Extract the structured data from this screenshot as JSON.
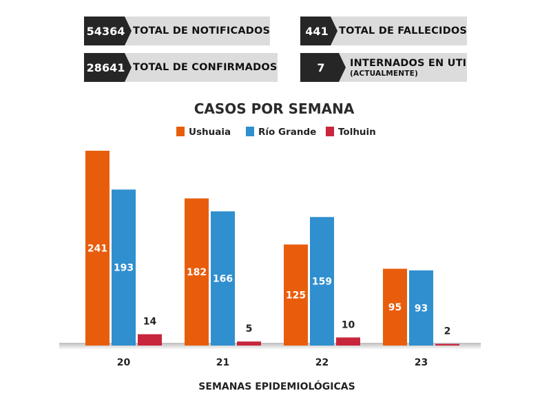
{
  "stats": {
    "notificados": {
      "value": "54364",
      "label": "TOTAL DE NOTIFICADOS"
    },
    "confirmados": {
      "value": "28641",
      "label": "TOTAL DE CONFIRMADOS"
    },
    "fallecidos": {
      "value": "441",
      "label": "TOTAL DE FALLECIDOS"
    },
    "uti": {
      "value": "7",
      "label": "INTERNADOS EN UTI",
      "sublabel": "(ACTUALMENTE)"
    }
  },
  "colors": {
    "ushuaia": "#e85d0c",
    "rio_grande": "#2f8fcf",
    "tolhuin": "#c7263c"
  },
  "chart_data": {
    "type": "bar",
    "title": "CASOS POR SEMANA",
    "xlabel": "SEMANAS EPIDEMIOLÓGICAS",
    "ylabel": "",
    "categories": [
      "20",
      "21",
      "22",
      "23"
    ],
    "series": [
      {
        "name": "Ushuaia",
        "values": [
          241,
          182,
          125,
          95
        ]
      },
      {
        "name": "Río Grande",
        "values": [
          193,
          166,
          159,
          93
        ]
      },
      {
        "name": "Tolhuin",
        "values": [
          14,
          5,
          10,
          2
        ]
      }
    ],
    "ylim": [
      0,
      241
    ],
    "legend_position": "top",
    "grid": false
  }
}
